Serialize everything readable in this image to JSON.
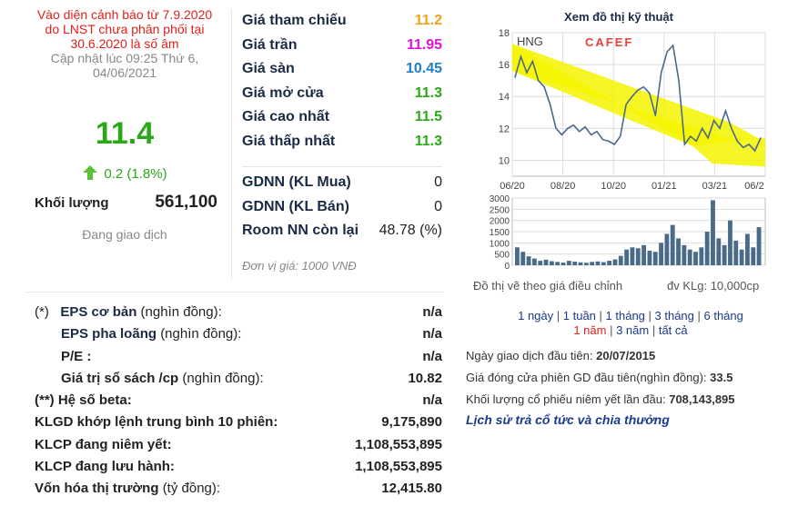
{
  "summary": {
    "warning": [
      "Vào diện cảnh báo từ 7.9.2020",
      "do LNST chưa phân phối tại",
      "30.6.2020 là số âm"
    ],
    "updated": [
      "Cập nhật lúc 09:25 Thứ 6,",
      "04/06/2021"
    ],
    "price": "11.4",
    "change": "0.2 (1.8%)",
    "volume_label": "Khối lượng",
    "volume_value": "561,100",
    "status": "Đang giao dịch"
  },
  "prices": [
    {
      "label": "Giá tham chiếu",
      "value": "11.2",
      "color": "#f0a21b"
    },
    {
      "label": "Giá trần",
      "value": "11.95",
      "color": "#e011d8"
    },
    {
      "label": "Giá sàn",
      "value": "10.45",
      "color": "#1c7fc8"
    },
    {
      "label": "Giá mở cửa",
      "value": "11.3",
      "color": "#2aa81a"
    },
    {
      "label": "Giá cao nhất",
      "value": "11.5",
      "color": "#2aa81a"
    },
    {
      "label": "Giá thấp nhất",
      "value": "11.3",
      "color": "#2aa81a"
    }
  ],
  "foreign": [
    {
      "label": "GDNN (KL Mua)",
      "value": "0"
    },
    {
      "label": "GDNN (KL Bán)",
      "value": "0"
    },
    {
      "label": "Room NN còn lại",
      "value": "48.78 (%)"
    }
  ],
  "unit_note": "Đơn vị giá: 1000 VNĐ",
  "fundamentals": {
    "eps_marker": "(*)",
    "eps_basic": "EPS cơ bản",
    "eps_basic_unit": "(nghìn đồng):",
    "eps_basic_value": "n/a",
    "eps_diluted": "EPS pha loãng",
    "eps_diluted_unit": "(nghìn đồng):",
    "eps_diluted_value": "n/a",
    "pe": "P/E :",
    "pe_value": "n/a",
    "book_value": "Giá trị sổ sách /cp",
    "book_value_unit": "(nghìn đồng):",
    "book_value_value": "10.82",
    "beta_marker": "(**)",
    "beta": "Hệ số beta:",
    "beta_value": "n/a",
    "avg_volume": "KLGD khớp lệnh trung bình 10 phiên:",
    "avg_volume_value": "9,175,890",
    "listed": "KLCP đang niêm yết:",
    "listed_value": "1,108,553,895",
    "outstanding": "KLCP đang lưu hành:",
    "outstanding_value": "1,108,553,895",
    "market_cap": "Vốn hóa thị trường",
    "market_cap_unit": "(tỷ đồng):",
    "market_cap_value": "12,415.80"
  },
  "chart": {
    "title": "Xem đồ thị kỹ thuật",
    "ticker": "HNG",
    "logo": "CAFEF",
    "note": "Đồ thị vẽ theo giá điều chỉnh",
    "volume_unit": "đv KLg: 10,000cp",
    "ranges": [
      "1 ngày",
      "1 tuần",
      "1 tháng",
      "3 tháng",
      "6 tháng",
      "1 năm",
      "3 năm",
      "tất cả"
    ],
    "active_range": "1 năm",
    "colors": {
      "line": "#4a6a8a",
      "highlight": "#f5f500",
      "volume": "#4a6a8a",
      "grid": "#dddddd"
    }
  },
  "chart_data": {
    "type": "line",
    "title": "",
    "xlabel": "",
    "ylabel": "",
    "ylim": [
      9,
      18
    ],
    "x_ticks": [
      "06/20",
      "08/20",
      "10/20",
      "01/21",
      "03/21",
      "06/2"
    ],
    "y_ticks": [
      10,
      12,
      14,
      16,
      18
    ],
    "series": [
      {
        "values": [
          15.2,
          16.5,
          15.5,
          16.2,
          15.0,
          14.6,
          13.5,
          12.0,
          11.6,
          12.0,
          12.2,
          11.8,
          12.1,
          11.6,
          11.8,
          11.3,
          11.2,
          11.0,
          11.5,
          13.5,
          14.0,
          14.4,
          14.6,
          14.2,
          12.8,
          15.5,
          16.8,
          17.2,
          15.0,
          11.0,
          11.5,
          11.2,
          12.0,
          11.4,
          12.5,
          12.0,
          13.1,
          12.0,
          11.2,
          10.8,
          11.0,
          10.6,
          11.4
        ]
      }
    ],
    "volume_chart": {
      "type": "bar",
      "ylim": [
        0,
        3000
      ],
      "y_ticks": [
        0,
        500,
        1000,
        1500,
        2000,
        2500,
        3000
      ],
      "values": [
        800,
        600,
        400,
        300,
        200,
        250,
        180,
        150,
        120,
        200,
        160,
        130,
        110,
        150,
        170,
        140,
        200,
        260,
        420,
        700,
        800,
        760,
        900,
        650,
        600,
        1000,
        1400,
        1800,
        1200,
        900,
        700,
        600,
        800,
        1500,
        2900,
        1200,
        900,
        2000,
        1100,
        700,
        1400,
        800,
        1700
      ]
    }
  },
  "listing": {
    "first_day_label": "Ngày giao dịch đầu tiên:",
    "first_day_value": "20/07/2015",
    "first_price_label": "Giá đóng cửa phiên GD đầu tiên(nghìn đồng):",
    "first_price_value": "33.5",
    "first_volume_label": "Khối lượng cổ phiếu niêm yết lần đầu:",
    "first_volume_value": "708,143,895",
    "history_link": "Lịch sử trả cổ tức và chia thưởng"
  }
}
